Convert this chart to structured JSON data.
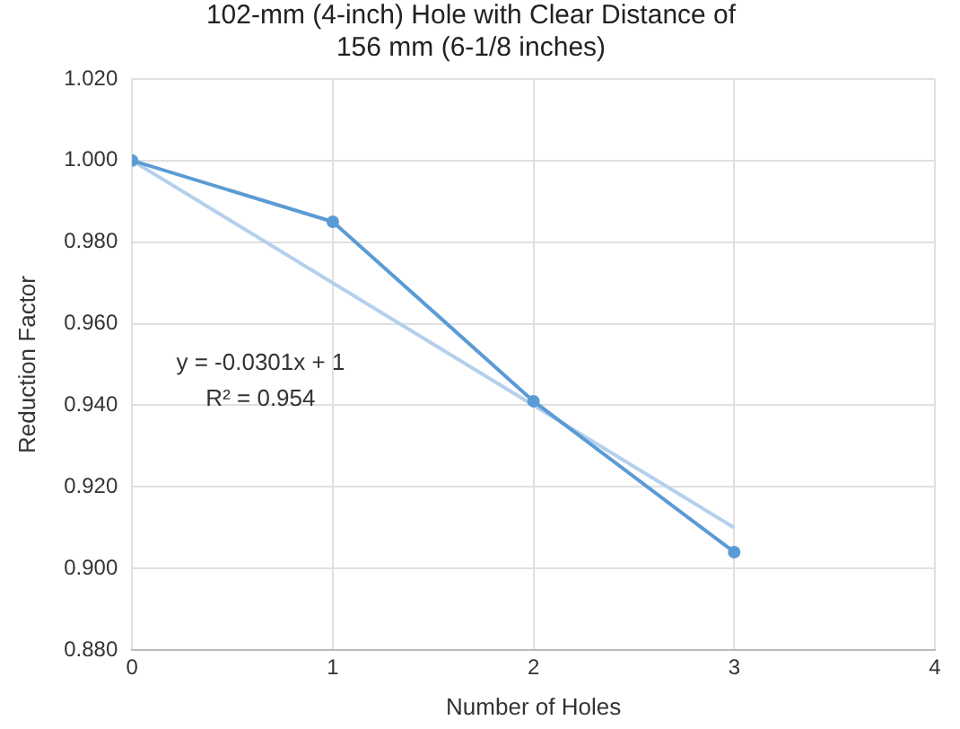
{
  "chart_data": {
    "type": "line",
    "title": "102-mm (4-inch) Hole with Clear Distance of 156 mm (6-1/8 inches)",
    "xlabel": "Number of Holes",
    "ylabel": "Reduction Factor",
    "x": [
      0,
      1,
      2,
      3
    ],
    "series": [
      {
        "color": "#5b9bd5",
        "values": [
          1.0,
          0.985,
          0.941,
          0.904
        ],
        "marker": "circle"
      },
      {
        "type": "line",
        "color": "#b4d0ec",
        "x": [
          0,
          3
        ],
        "values": [
          1.0,
          0.91
        ],
        "marker": "none"
      }
    ],
    "xlim": [
      0,
      4
    ],
    "xticks": [
      0,
      1,
      2,
      3,
      4
    ],
    "ylim": [
      0.88,
      1.02
    ],
    "yticks": [
      {
        "value": 0.88,
        "label": "0.880"
      },
      {
        "value": 0.9,
        "label": "0.900"
      },
      {
        "value": 0.92,
        "label": "0.920"
      },
      {
        "value": 0.94,
        "label": "0.940"
      },
      {
        "value": 0.96,
        "label": "0.960"
      },
      {
        "value": 0.98,
        "label": "0.980"
      },
      {
        "value": 1.0,
        "label": "1.000"
      },
      {
        "value": 1.02,
        "label": "1.020"
      }
    ],
    "grid": true,
    "legend": false,
    "annotations": [
      "y = -0.0301x + 1",
      "R² = 0.954"
    ]
  }
}
